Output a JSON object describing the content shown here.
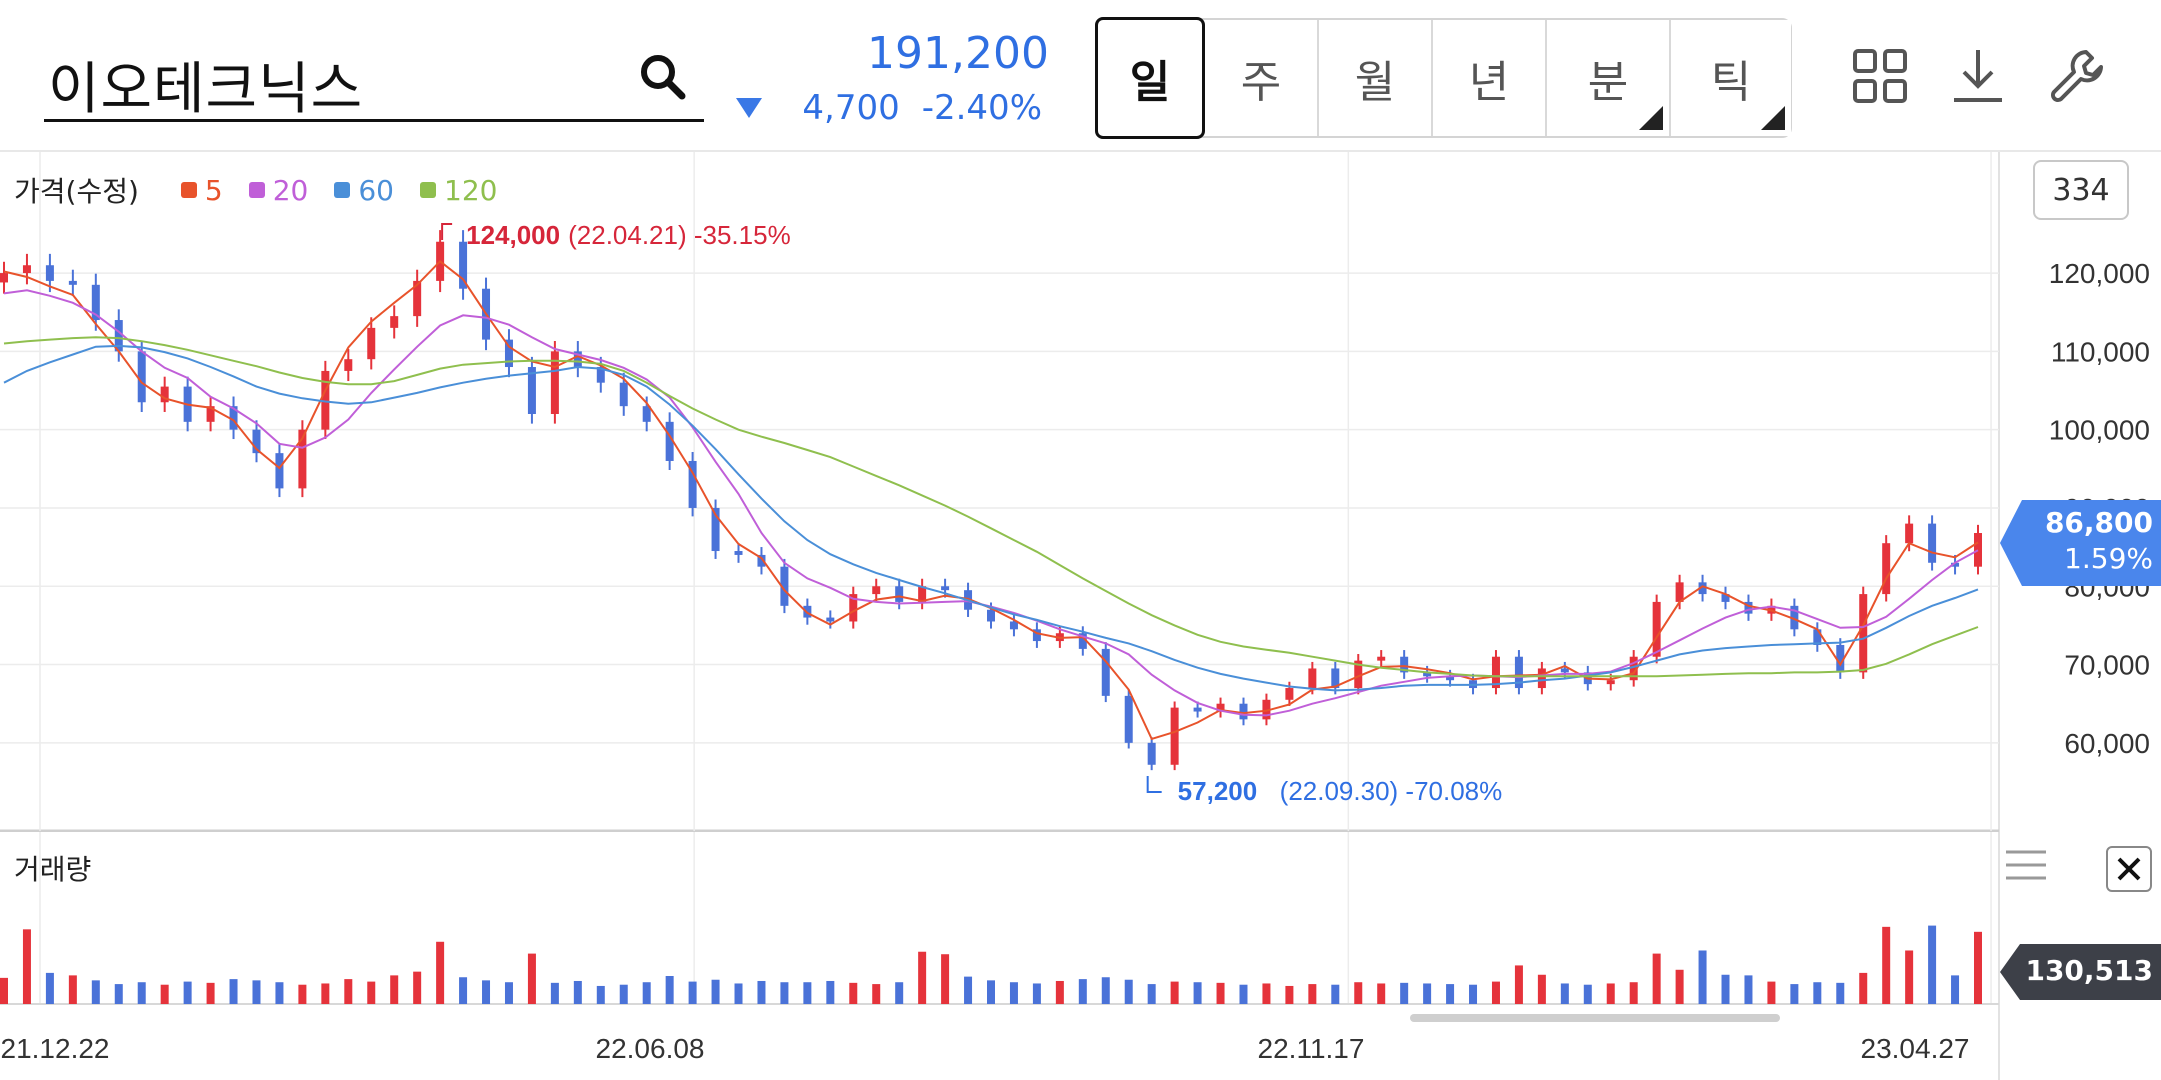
{
  "header": {
    "stock_name": "이오테크닉스",
    "price": "191,200",
    "change": "4,700",
    "change_pct": "-2.40%",
    "price_color": "#2f6fe2",
    "periods": [
      {
        "label": "일",
        "active": true,
        "has_corner": false
      },
      {
        "label": "주",
        "active": false,
        "has_corner": false
      },
      {
        "label": "월",
        "active": false,
        "has_corner": false
      },
      {
        "label": "년",
        "active": false,
        "has_corner": false
      },
      {
        "label": "분",
        "active": false,
        "has_corner": true
      },
      {
        "label": "틱",
        "active": false,
        "has_corner": true
      }
    ],
    "icons": [
      "grid-icon",
      "download-icon",
      "wrench-icon"
    ]
  },
  "legend": {
    "title": "가격(수정)",
    "items": [
      {
        "label": "5",
        "color": "#e8532b"
      },
      {
        "label": "20",
        "color": "#c05fd8"
      },
      {
        "label": "60",
        "color": "#4a8fd8"
      },
      {
        "label": "120",
        "color": "#8fbf4e"
      }
    ]
  },
  "zoom_level": "334",
  "current_price": {
    "value": "86,800",
    "pct": "1.59%",
    "color": "#4a86ec"
  },
  "volume": {
    "title": "거래량",
    "last_value": "130,513",
    "tag_color": "#3d4048"
  },
  "colors": {
    "up": "#e5333b",
    "down": "#4a72d8",
    "grid": "#ececec"
  },
  "chart_data": {
    "type": "candlestick",
    "series": [
      {
        "name": "5",
        "color": "#e8532b",
        "values": [
          120200,
          119500,
          118300,
          117200,
          113500,
          110000,
          106000,
          104000,
          103200,
          102800,
          101200,
          97500,
          95100,
          98900,
          105000,
          110500,
          113800,
          116200,
          118500,
          121500,
          119200,
          114800,
          110600,
          108700,
          108000,
          109400,
          108200,
          106500,
          103400,
          99200,
          94500,
          89100,
          85400,
          83600,
          79500,
          76600,
          75100,
          76800,
          78300,
          78700,
          78100,
          78800,
          78400,
          77200,
          75700,
          74000,
          73400,
          73500,
          70400,
          66800,
          60500,
          61400,
          62600,
          64200,
          63800,
          64100,
          64900,
          66800,
          67200,
          68500,
          69700,
          69800,
          69400,
          68900,
          68100,
          68500,
          68600,
          68700,
          69800,
          68200,
          68100,
          68900,
          73500,
          78000,
          80000,
          79000,
          77500,
          76900,
          75800,
          74500,
          70000,
          75000,
          81000,
          85500,
          84300,
          83700,
          85600
        ]
      },
      {
        "name": "20",
        "color": "#c05fd8",
        "values": [
          117400,
          117800,
          117100,
          116200,
          114700,
          112500,
          110000,
          107900,
          106600,
          104200,
          102700,
          100800,
          98200,
          97700,
          99000,
          101300,
          104700,
          107700,
          110600,
          113300,
          114600,
          114300,
          113400,
          111800,
          110300,
          109600,
          108900,
          107900,
          106400,
          104100,
          100300,
          95900,
          91800,
          86800,
          83000,
          81000,
          79800,
          78400,
          78000,
          77800,
          77900,
          78000,
          78100,
          77400,
          76600,
          75600,
          74500,
          73600,
          72700,
          71300,
          68700,
          66700,
          65100,
          64100,
          63600,
          63500,
          64100,
          65000,
          65700,
          66500,
          67300,
          67800,
          68300,
          68500,
          68600,
          68500,
          68400,
          68600,
          68800,
          68800,
          69100,
          70200,
          71600,
          73100,
          74600,
          76000,
          77000,
          77400,
          76900,
          75800,
          74700,
          74800,
          76100,
          78400,
          80800,
          83000,
          84600
        ]
      },
      {
        "name": "60",
        "color": "#4a8fd8",
        "values": [
          106000,
          107500,
          108600,
          109600,
          110600,
          110700,
          110500,
          109900,
          109100,
          108000,
          106800,
          105500,
          104600,
          104000,
          103600,
          103300,
          103500,
          104100,
          104700,
          105400,
          106000,
          106500,
          106900,
          107200,
          107500,
          108000,
          107800,
          107000,
          105500,
          103200,
          100500,
          97500,
          94300,
          91200,
          88300,
          85900,
          84100,
          82800,
          81700,
          80800,
          79900,
          79100,
          78200,
          77300,
          76400,
          75700,
          74900,
          74200,
          73400,
          72700,
          71700,
          70600,
          69600,
          68800,
          68200,
          67700,
          67200,
          66900,
          66700,
          66800,
          67000,
          67300,
          67400,
          67400,
          67400,
          67500,
          67700,
          68000,
          68200,
          68600,
          69000,
          69700,
          70500,
          71300,
          71800,
          72100,
          72300,
          72500,
          72600,
          72700,
          72800,
          73300,
          74700,
          76200,
          77500,
          78500,
          79600
        ]
      },
      {
        "name": "120",
        "color": "#8fbf4e",
        "values": [
          111000,
          111300,
          111500,
          111700,
          111800,
          111700,
          111300,
          110800,
          110200,
          109500,
          108800,
          108100,
          107300,
          106600,
          106100,
          105800,
          105800,
          106200,
          107000,
          107800,
          108300,
          108500,
          108700,
          108800,
          108800,
          108700,
          108400,
          107500,
          106000,
          104300,
          102700,
          101300,
          100000,
          99100,
          98300,
          97400,
          96500,
          95300,
          94100,
          92900,
          91600,
          90300,
          88900,
          87400,
          85900,
          84400,
          82700,
          81000,
          79400,
          77800,
          76300,
          75000,
          73800,
          72900,
          72300,
          71900,
          71500,
          71000,
          70500,
          70000,
          69600,
          69300,
          69000,
          68800,
          68600,
          68500,
          68500,
          68500,
          68500,
          68500,
          68500,
          68500,
          68500,
          68600,
          68700,
          68800,
          68900,
          68900,
          69000,
          69000,
          69100,
          69300,
          70100,
          71300,
          72600,
          73700,
          74800
        ]
      }
    ],
    "candles": [
      120000,
      121000,
      119000,
      118500,
      114000,
      110000,
      103500,
      105500,
      101000,
      103000,
      100000,
      97000,
      92500,
      100000,
      107500,
      109000,
      113000,
      114500,
      119000,
      124000,
      118000,
      111500,
      108000,
      102000,
      110000,
      108000,
      106000,
      103000,
      101000,
      96000,
      90000,
      84500,
      84000,
      82500,
      77500,
      76000,
      75500,
      79000,
      80000,
      78000,
      80000,
      79500,
      77000,
      75500,
      74500,
      73000,
      74000,
      72000,
      66000,
      60000,
      57200,
      64500,
      64000,
      65000,
      63000,
      65500,
      67000,
      69500,
      67000,
      70500,
      71000,
      69000,
      68500,
      68000,
      67000,
      71000,
      67000,
      69500,
      69000,
      67500,
      68000,
      71000,
      78000,
      80500,
      79000,
      78000,
      76500,
      77500,
      74500,
      72500,
      69000,
      79000,
      85500,
      88000,
      83000,
      82500,
      86800
    ],
    "ylim": [
      55000,
      125500
    ],
    "yticks": [
      "60,000",
      "70,000",
      "80,000",
      "90,000",
      "100,000",
      "110,000",
      "120,000"
    ],
    "xticks": [
      "21.12.22",
      "22.06.08",
      "22.11.17",
      "23.04.27"
    ],
    "annotations": [
      {
        "price": "124,000",
        "detail": "(22.04.21) -35.15%",
        "kind": "high",
        "index": 19
      },
      {
        "price": "57,200",
        "detail": "(22.09.30) -70.08%",
        "kind": "low",
        "index": 50
      }
    ],
    "volume": {
      "ylim": [
        0,
        900000
      ],
      "values": [
        210000,
        600000,
        250000,
        230000,
        190000,
        160000,
        175000,
        155000,
        180000,
        170000,
        200000,
        190000,
        175000,
        155000,
        165000,
        200000,
        180000,
        230000,
        260000,
        500000,
        215000,
        190000,
        175000,
        405000,
        170000,
        185000,
        145000,
        155000,
        175000,
        225000,
        180000,
        195000,
        165000,
        185000,
        175000,
        175000,
        185000,
        170000,
        160000,
        175000,
        420000,
        400000,
        220000,
        190000,
        175000,
        165000,
        185000,
        200000,
        215000,
        195000,
        160000,
        180000,
        175000,
        170000,
        155000,
        165000,
        145000,
        160000,
        155000,
        175000,
        165000,
        170000,
        165000,
        160000,
        155000,
        180000,
        310000,
        235000,
        165000,
        155000,
        165000,
        175000,
        405000,
        275000,
        430000,
        235000,
        230000,
        180000,
        160000,
        175000,
        170000,
        250000,
        620000,
        430000,
        630000,
        230000,
        580000
      ],
      "up": [
        true,
        true,
        false,
        true,
        false,
        false,
        false,
        true,
        false,
        true,
        false,
        false,
        false,
        true,
        true,
        true,
        true,
        true,
        true,
        true,
        false,
        false,
        false,
        true,
        false,
        false,
        false,
        false,
        false,
        false,
        false,
        false,
        false,
        false,
        false,
        false,
        false,
        true,
        true,
        false,
        true,
        true,
        false,
        false,
        false,
        false,
        true,
        false,
        false,
        false,
        false,
        true,
        false,
        true,
        false,
        true,
        true,
        true,
        false,
        true,
        true,
        false,
        false,
        false,
        false,
        true,
        true,
        true,
        false,
        false,
        true,
        true,
        true,
        true,
        false,
        false,
        false,
        true,
        false,
        false,
        false,
        true,
        true,
        true,
        false,
        false,
        true
      ]
    }
  }
}
